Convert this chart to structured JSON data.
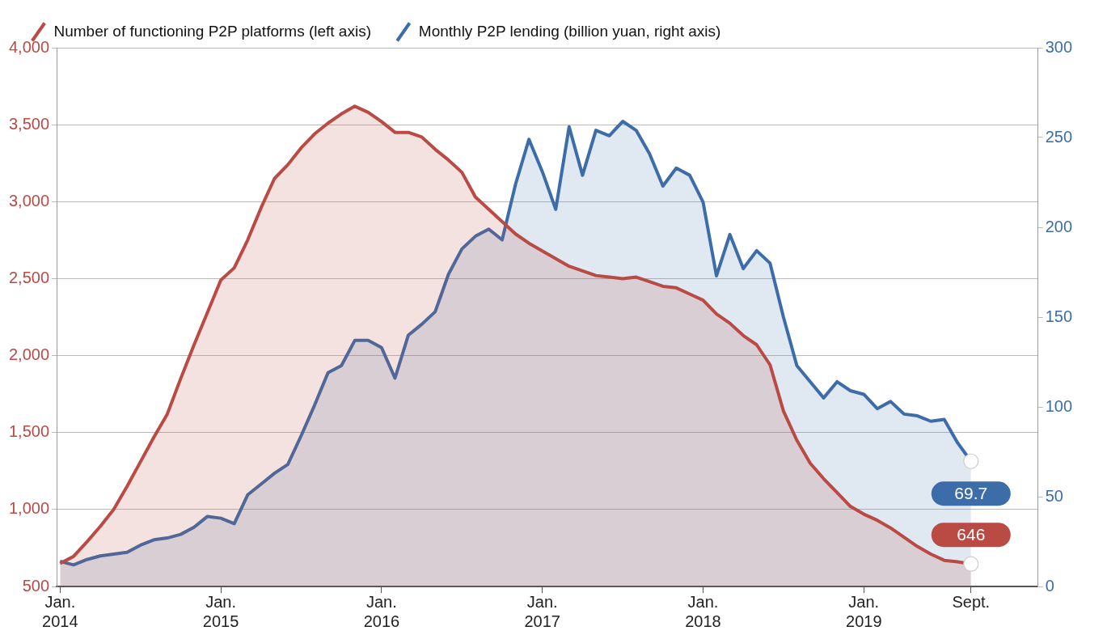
{
  "chart_data": {
    "type": "area",
    "x": [
      "2014-01",
      "2014-02",
      "2014-03",
      "2014-04",
      "2014-05",
      "2014-06",
      "2014-07",
      "2014-08",
      "2014-09",
      "2014-10",
      "2014-11",
      "2014-12",
      "2015-01",
      "2015-02",
      "2015-03",
      "2015-04",
      "2015-05",
      "2015-06",
      "2015-07",
      "2015-08",
      "2015-09",
      "2015-10",
      "2015-11",
      "2015-12",
      "2016-01",
      "2016-02",
      "2016-03",
      "2016-04",
      "2016-05",
      "2016-06",
      "2016-07",
      "2016-08",
      "2016-09",
      "2016-10",
      "2016-11",
      "2016-12",
      "2017-01",
      "2017-02",
      "2017-03",
      "2017-04",
      "2017-05",
      "2017-06",
      "2017-07",
      "2017-08",
      "2017-09",
      "2017-10",
      "2017-11",
      "2017-12",
      "2018-01",
      "2018-02",
      "2018-03",
      "2018-04",
      "2018-05",
      "2018-06",
      "2018-07",
      "2018-08",
      "2018-09",
      "2018-10",
      "2018-11",
      "2018-12",
      "2019-01",
      "2019-02",
      "2019-03",
      "2019-04",
      "2019-05",
      "2019-06",
      "2019-07",
      "2019-08",
      "2019-09"
    ],
    "series": [
      {
        "name": "Number of functioning P2P platforms (left axis)",
        "color": "#b94a44",
        "values": [
          650,
          695,
          790,
          890,
          1000,
          1150,
          1310,
          1470,
          1620,
          1850,
          2070,
          2280,
          2490,
          2570,
          2750,
          2960,
          3150,
          3240,
          3350,
          3440,
          3510,
          3570,
          3620,
          3580,
          3520,
          3450,
          3450,
          3420,
          3340,
          3270,
          3190,
          3030,
          2950,
          2870,
          2790,
          2730,
          2680,
          2630,
          2580,
          2550,
          2520,
          2510,
          2500,
          2510,
          2480,
          2450,
          2440,
          2400,
          2360,
          2270,
          2210,
          2130,
          2070,
          1940,
          1640,
          1450,
          1300,
          1200,
          1110,
          1020,
          970,
          930,
          880,
          820,
          760,
          710,
          670,
          660,
          646
        ],
        "value_labels": [
          null,
          null,
          null,
          null,
          null,
          null,
          null,
          null,
          null,
          null,
          null,
          null,
          null,
          null,
          null,
          null,
          null,
          null,
          null,
          null,
          null,
          null,
          null,
          null,
          null,
          null,
          null,
          null,
          null,
          null,
          null,
          null,
          null,
          null,
          null,
          null,
          null,
          null,
          null,
          null,
          null,
          null,
          null,
          null,
          null,
          null,
          null,
          null,
          null,
          null,
          null,
          null,
          null,
          null,
          null,
          null,
          null,
          null,
          null,
          null,
          null,
          null,
          null,
          null,
          null,
          null,
          null,
          null,
          "646"
        ]
      },
      {
        "name": "Monthly P2P lending (billion yuan, right axis)",
        "color": "#3d6da8",
        "axis": "y2",
        "values": [
          14,
          12,
          15,
          17,
          18,
          19,
          23,
          26,
          27,
          29,
          33,
          39,
          38,
          35,
          51,
          57,
          63,
          68,
          84,
          101,
          119,
          123,
          137,
          137,
          133,
          116,
          140,
          146,
          153,
          174,
          188,
          195,
          199,
          193,
          224,
          249,
          231,
          210,
          256,
          229,
          254,
          251,
          259,
          254,
          241,
          223,
          233,
          229,
          214,
          173,
          196,
          177,
          187,
          180,
          150,
          123,
          114,
          105,
          114,
          109,
          107,
          99,
          103,
          96,
          95,
          92,
          93,
          80,
          69.7
        ],
        "value_labels": [
          null,
          null,
          null,
          null,
          null,
          null,
          null,
          null,
          null,
          null,
          null,
          null,
          null,
          null,
          null,
          null,
          null,
          null,
          null,
          null,
          null,
          null,
          null,
          null,
          null,
          null,
          null,
          null,
          null,
          null,
          null,
          null,
          null,
          null,
          null,
          null,
          null,
          null,
          null,
          null,
          null,
          null,
          null,
          null,
          null,
          null,
          null,
          null,
          null,
          null,
          null,
          null,
          null,
          null,
          null,
          null,
          null,
          null,
          null,
          null,
          null,
          null,
          null,
          null,
          null,
          null,
          null,
          null,
          "69.7"
        ]
      }
    ],
    "xlim": [
      "2013-12-24",
      "2020-02"
    ],
    "xticks": [
      {
        "value": "2014-01",
        "label": "Jan. 2014"
      },
      {
        "value": "2015-01",
        "label": "Jan. 2015"
      },
      {
        "value": "2016-01",
        "label": "Jan. 2016"
      },
      {
        "value": "2017-01",
        "label": "Jan. 2017"
      },
      {
        "value": "2018-01",
        "label": "Jan. 2018"
      },
      {
        "value": "2019-01",
        "label": "Jan. 2019"
      },
      {
        "value": "2019-09",
        "label": "Sept."
      }
    ],
    "ylim": [
      500,
      4000
    ],
    "yticks": [
      500,
      {
        "value": 1000,
        "label": "1,000"
      },
      {
        "value": 1500,
        "label": "1,500"
      },
      {
        "value": 2000,
        "label": "2,000"
      },
      {
        "value": 2500,
        "label": "2,500"
      },
      {
        "value": 3000,
        "label": "3,000"
      },
      {
        "value": 3500,
        "label": "3,500"
      },
      {
        "value": 4000,
        "label": "4,000"
      }
    ],
    "y2lim": [
      0,
      300
    ],
    "y2ticks": [
      0,
      50,
      100,
      150,
      200,
      250,
      300
    ],
    "grid": "y",
    "legend": "top left"
  }
}
